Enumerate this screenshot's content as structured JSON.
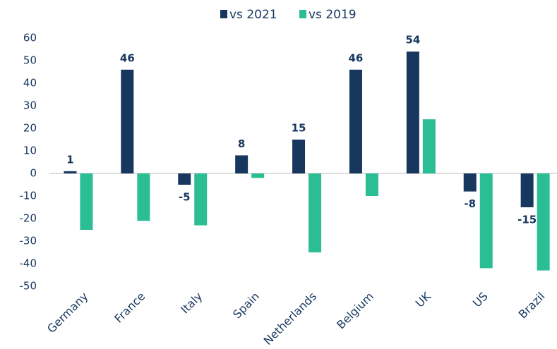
{
  "chart_data": {
    "type": "bar",
    "categories": [
      "Germany",
      "France",
      "Italy",
      "Spain",
      "Netherlands",
      "Belgium",
      "UK",
      "US",
      "Brazil"
    ],
    "series": [
      {
        "name": "vs 2021",
        "color": "#17375e",
        "values": [
          1,
          46,
          -5,
          8,
          15,
          46,
          54,
          -8,
          -15
        ]
      },
      {
        "name": "vs 2019",
        "color": "#2bbd94",
        "values": [
          -25,
          -21,
          -23,
          -2,
          -35,
          -10,
          24,
          -42,
          -43
        ]
      }
    ],
    "ylim": [
      -50,
      60
    ],
    "yticks": [
      -50,
      -40,
      -30,
      -20,
      -10,
      0,
      10,
      20,
      30,
      40,
      50,
      60
    ],
    "grid": false,
    "legend": "top"
  }
}
